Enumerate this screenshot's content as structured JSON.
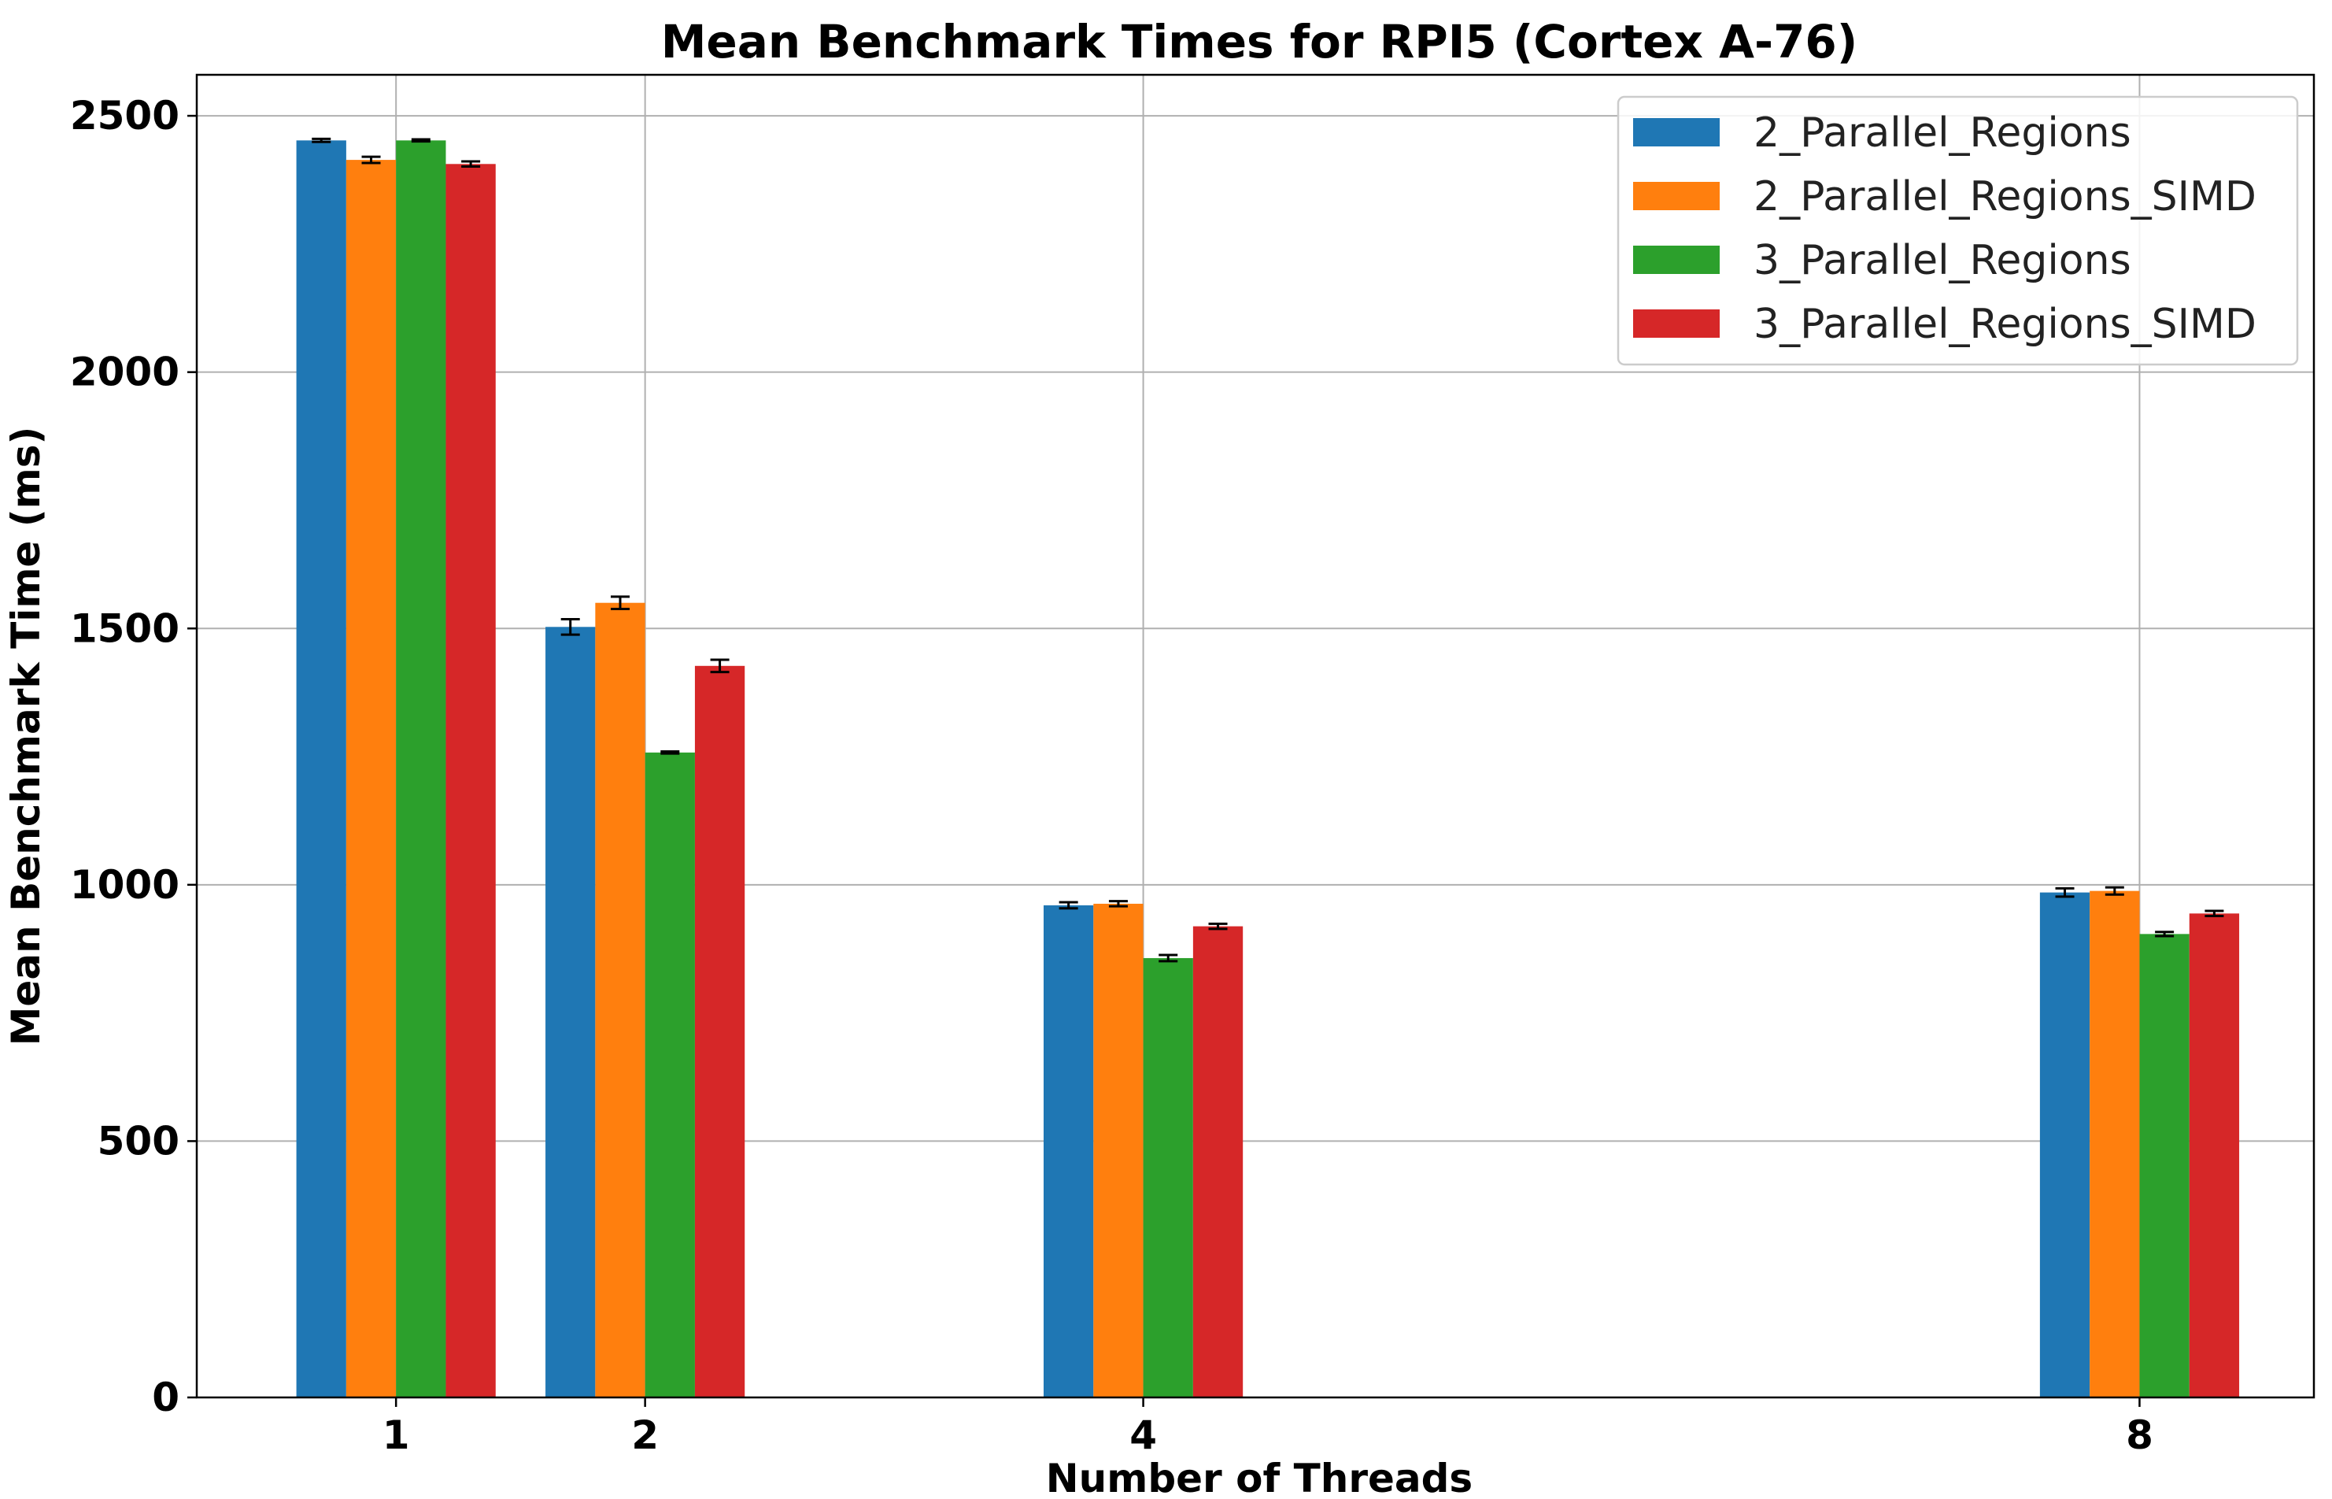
{
  "chart_data": {
    "type": "bar",
    "title": "Mean Benchmark Times for RPI5 (Cortex A-76)",
    "xlabel": "Number of Threads",
    "ylabel": "Mean Benchmark Time (ms)",
    "x": [
      1,
      2,
      4,
      8
    ],
    "xlim": [
      0.2,
      8.7
    ],
    "ylim": [
      0,
      2580
    ],
    "yticks": [
      0,
      500,
      1000,
      1500,
      2000,
      2500
    ],
    "grid": true,
    "legend_position": "top-right",
    "series": [
      {
        "name": "2_Parallel_Regions",
        "color": "#1f77b4",
        "values": [
          2452,
          1503,
          960,
          985
        ],
        "errors": [
          3,
          15,
          6,
          8
        ]
      },
      {
        "name": "2_Parallel_Regions_SIMD",
        "color": "#ff7f0e",
        "values": [
          2414,
          1550,
          963,
          988
        ],
        "errors": [
          6,
          12,
          5,
          7
        ]
      },
      {
        "name": "3_Parallel_Regions",
        "color": "#2ca02c",
        "values": [
          2452,
          1258,
          857,
          904
        ],
        "errors": [
          2,
          2,
          6,
          4
        ]
      },
      {
        "name": "3_Parallel_Regions_SIMD",
        "color": "#d62728",
        "values": [
          2406,
          1427,
          919,
          944
        ],
        "errors": [
          5,
          12,
          5,
          5
        ]
      }
    ]
  }
}
